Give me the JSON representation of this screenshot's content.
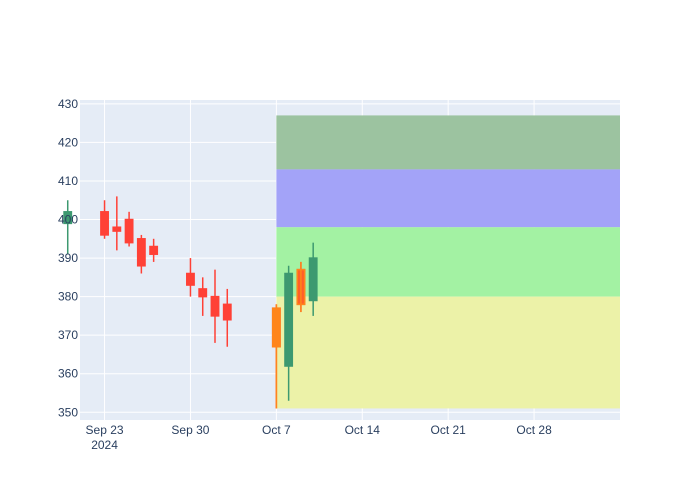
{
  "chart_data": {
    "type": "candlestick",
    "x_axis": {
      "type": "date",
      "range": [
        "2024-09-21",
        "2024-11-04"
      ],
      "tick_labels": [
        {
          "date": "2024-09-23",
          "label": "Sep 23",
          "sublabel": "2024"
        },
        {
          "date": "2024-09-30",
          "label": "Sep 30"
        },
        {
          "date": "2024-10-07",
          "label": "Oct 7"
        },
        {
          "date": "2024-10-14",
          "label": "Oct 14"
        },
        {
          "date": "2024-10-21",
          "label": "Oct 21"
        },
        {
          "date": "2024-10-28",
          "label": "Oct 28"
        }
      ]
    },
    "y_axis": {
      "range": [
        348,
        431
      ],
      "ticks": [
        350,
        360,
        370,
        380,
        390,
        400,
        410,
        420,
        430
      ]
    },
    "grid": true,
    "candles": [
      {
        "date": "2024-09-20",
        "open": 399,
        "high": 405,
        "low": 391,
        "close": 402,
        "direction": "up"
      },
      {
        "date": "2024-09-23",
        "open": 402,
        "high": 405,
        "low": 395,
        "close": 396,
        "direction": "down"
      },
      {
        "date": "2024-09-24",
        "open": 398,
        "high": 406,
        "low": 392,
        "close": 397,
        "direction": "down"
      },
      {
        "date": "2024-09-25",
        "open": 400,
        "high": 402,
        "low": 393,
        "close": 394,
        "direction": "down"
      },
      {
        "date": "2024-09-26",
        "open": 395,
        "high": 396,
        "low": 386,
        "close": 388,
        "direction": "down"
      },
      {
        "date": "2024-09-27",
        "open": 393,
        "high": 395,
        "low": 389,
        "close": 391,
        "direction": "down"
      },
      {
        "date": "2024-09-30",
        "open": 386,
        "high": 390,
        "low": 380,
        "close": 383,
        "direction": "down"
      },
      {
        "date": "2024-10-01",
        "open": 382,
        "high": 385,
        "low": 375,
        "close": 380,
        "direction": "down"
      },
      {
        "date": "2024-10-02",
        "open": 380,
        "high": 387,
        "low": 368,
        "close": 375,
        "direction": "down"
      },
      {
        "date": "2024-10-03",
        "open": 378,
        "high": 382,
        "low": 367,
        "close": 374,
        "direction": "down"
      },
      {
        "date": "2024-10-07",
        "open": 377,
        "high": 378,
        "low": 351,
        "close": 367,
        "direction": "down"
      },
      {
        "date": "2024-10-08",
        "open": 362,
        "high": 388,
        "low": 353,
        "close": 386,
        "direction": "up"
      },
      {
        "date": "2024-10-09",
        "open": 387,
        "high": 389,
        "low": 376,
        "close": 378,
        "direction": "down"
      },
      {
        "date": "2024-10-10",
        "open": 379,
        "high": 394,
        "low": 375,
        "close": 390,
        "direction": "up"
      }
    ],
    "highlight_candle": {
      "date": "2024-10-07",
      "open": 377,
      "high": 378,
      "low": 351,
      "close": 367
    },
    "highlight_candle_2": {
      "date": "2024-10-09",
      "open": 387,
      "high": 389,
      "low": 376,
      "close": 378
    },
    "shaded_bands": [
      {
        "y0": 413,
        "y1": 427,
        "color": "#9cc3a0"
      },
      {
        "y0": 398,
        "y1": 413,
        "color": "#a3a3f8"
      },
      {
        "y0": 380,
        "y1": 398,
        "color": "#a3f2a3"
      },
      {
        "y0": 351,
        "y1": 380,
        "color": "#ecf2a8"
      }
    ],
    "shade_start_date": "2024-10-07",
    "colors": {
      "increasing": "#3d9970",
      "decreasing": "#ff4136",
      "highlight": "#ff851b",
      "highlight_up": "#2ecc40",
      "plot_bg": "#e5ecf6",
      "grid": "#ffffff",
      "tick_text": "#2a3f5f"
    }
  }
}
